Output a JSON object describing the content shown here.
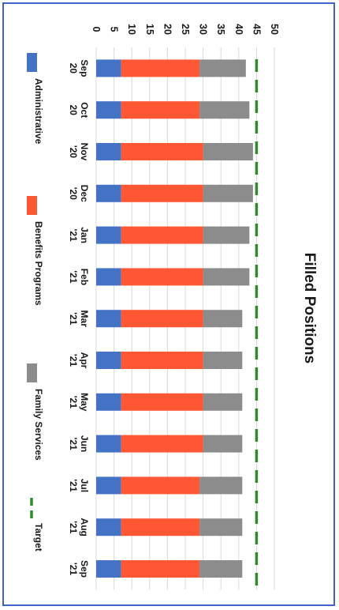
{
  "chart_data": {
    "type": "bar",
    "stacked": true,
    "orientation": "vertical-bars-rotated-view",
    "title": "Filled Positions",
    "categories": [
      "Sep 20",
      "Oct 20",
      "Nov '20",
      "Dec '20",
      "Jan '21",
      "Feb '21",
      "Mar '21",
      "Apr '21",
      "May '21",
      "Jun '21",
      "Jul '21",
      "Aug '21",
      "Sep '21"
    ],
    "series": [
      {
        "name": "Administrative",
        "color": "#4472c4",
        "values": [
          7,
          7,
          7,
          7,
          7,
          7,
          7,
          7,
          7,
          7,
          7,
          7,
          7
        ]
      },
      {
        "name": "Benefits Programs",
        "color": "#ff5733",
        "values": [
          22,
          22,
          23,
          23,
          23,
          23,
          23,
          23,
          23,
          23,
          22,
          22,
          22
        ]
      },
      {
        "name": "Family Services",
        "color": "#8c8c8c",
        "values": [
          13,
          14,
          14,
          14,
          13,
          13,
          11,
          11,
          11,
          11,
          12,
          12,
          12
        ]
      }
    ],
    "target": {
      "name": "Target",
      "color": "#2e8b2e",
      "value": 45
    },
    "ylim": [
      0,
      50
    ],
    "yticks": [
      0,
      5,
      10,
      15,
      20,
      25,
      30,
      35,
      40,
      45,
      50
    ],
    "grid": true,
    "legend": "bottom"
  }
}
